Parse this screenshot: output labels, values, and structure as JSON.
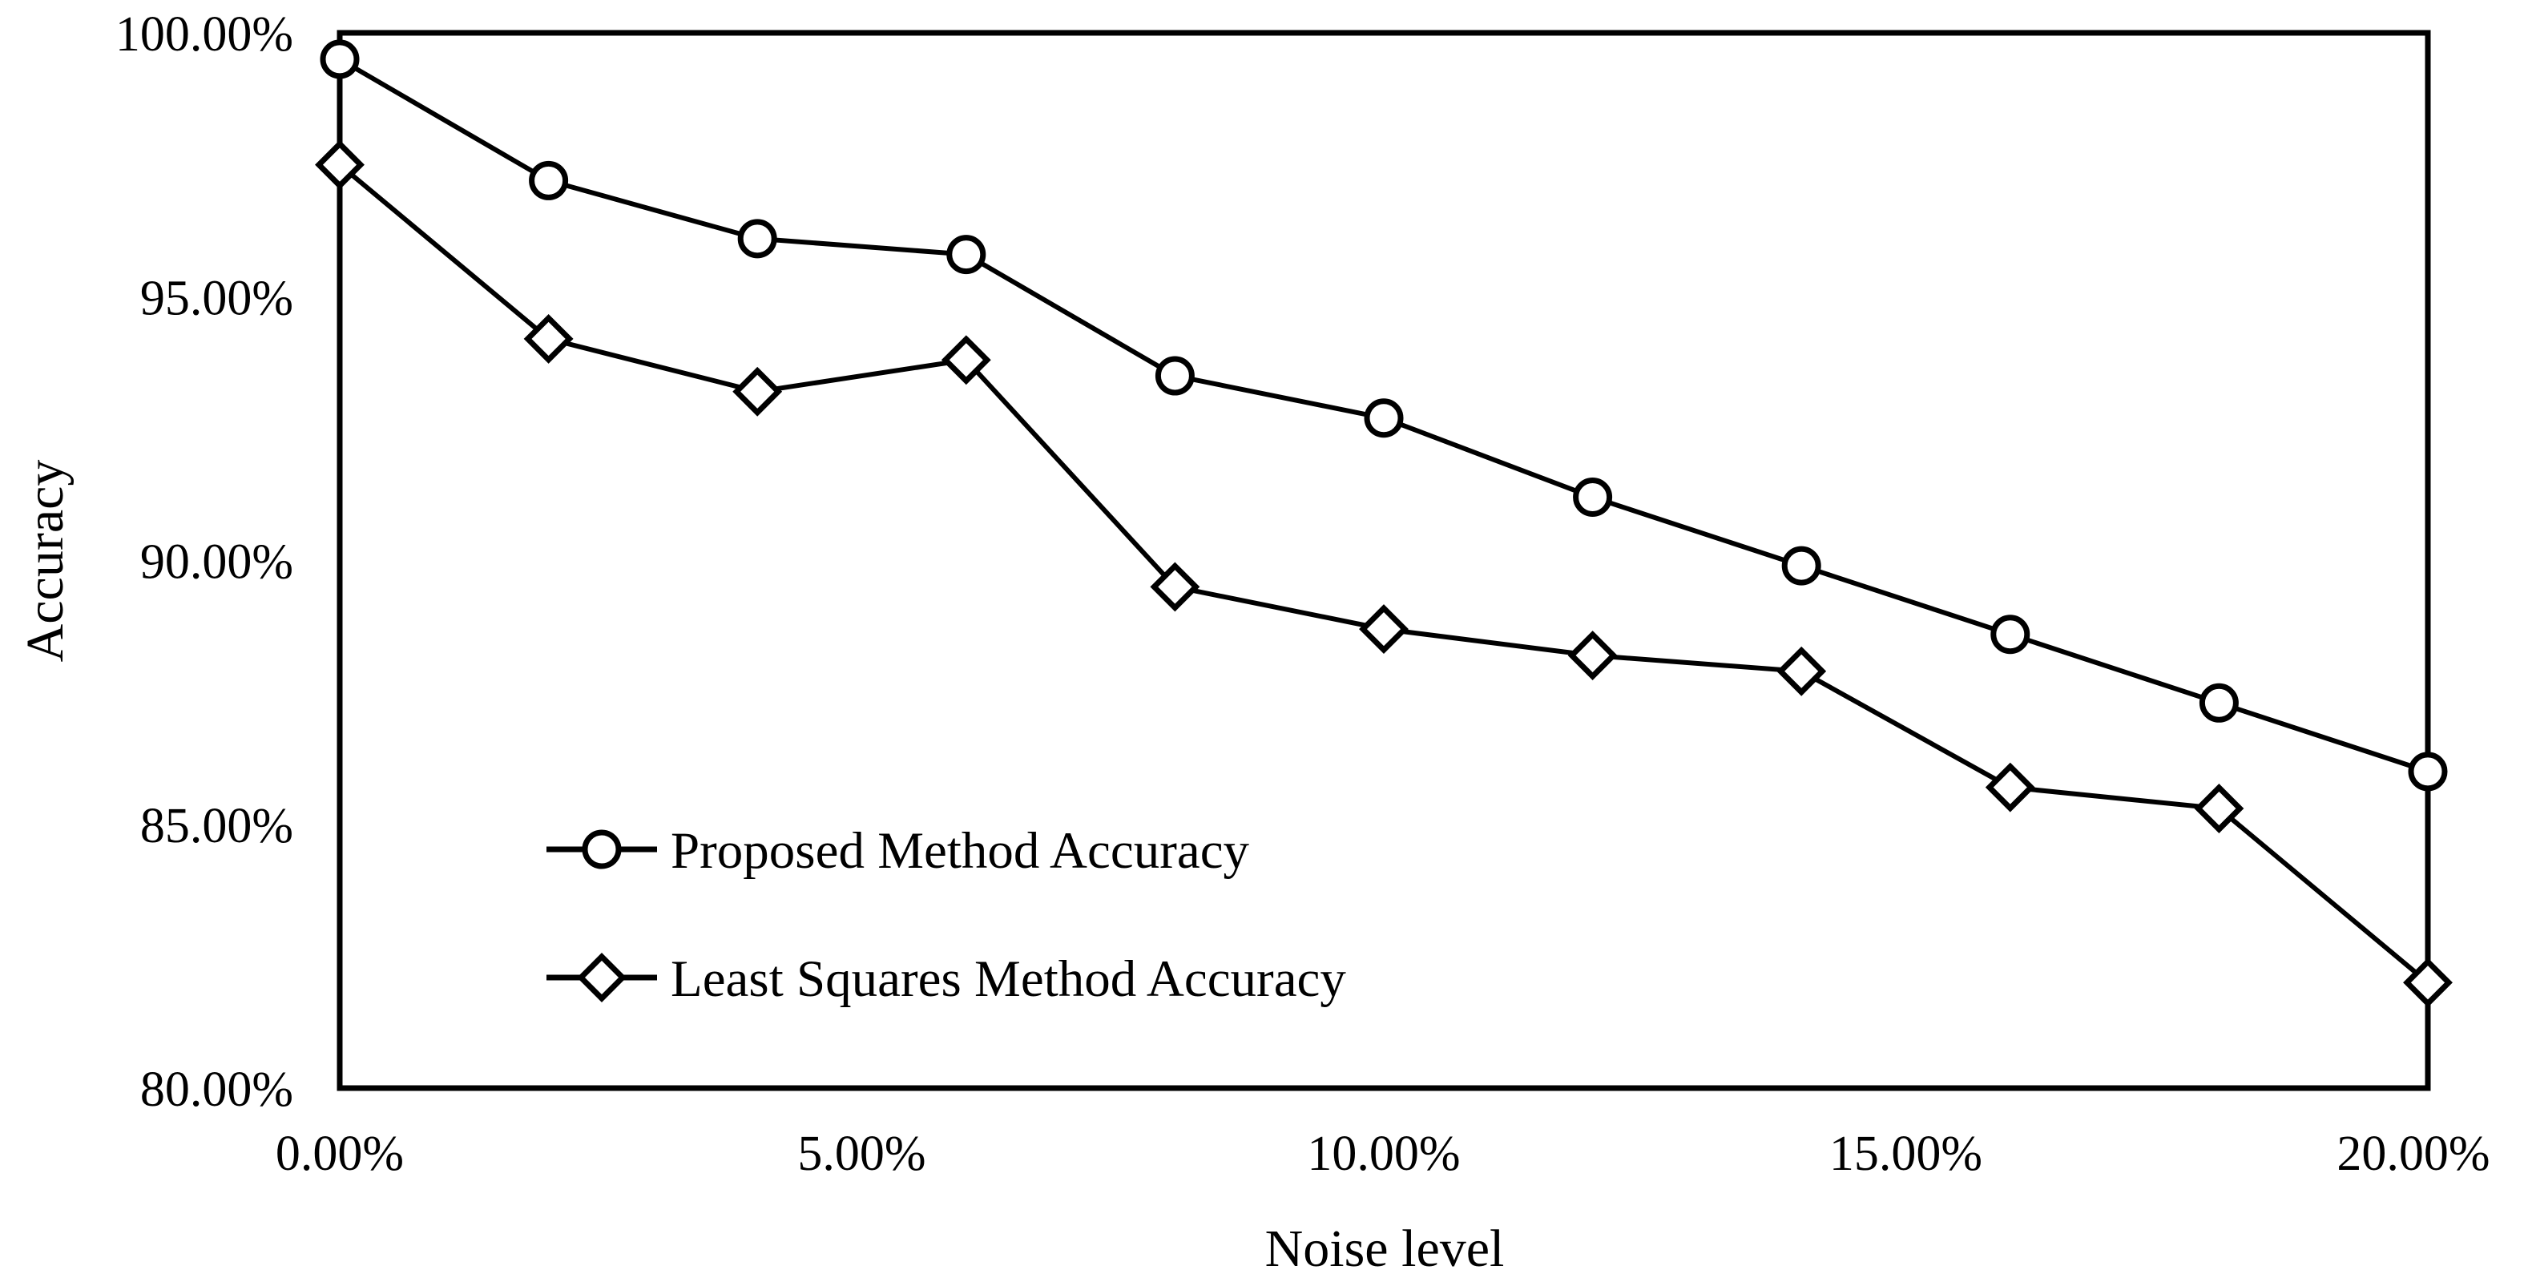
{
  "figure": {
    "background": "#ffffff",
    "line_color": "#000000"
  },
  "chart_data": {
    "type": "line",
    "title": "",
    "xlabel": "Noise level",
    "ylabel": "Accuracy",
    "xlim": [
      0,
      20
    ],
    "ylim": [
      80,
      100
    ],
    "grid": false,
    "legend_position": "inside lower-left",
    "x": [
      0,
      2,
      4,
      6,
      8,
      10,
      12,
      14,
      16,
      18,
      20
    ],
    "x_ticks": [
      0,
      5,
      10,
      15,
      20
    ],
    "x_tick_labels": [
      "0.00%",
      "5.00%",
      "10.00%",
      "15.00%",
      "20.00%"
    ],
    "y_ticks": [
      100,
      95,
      90,
      85,
      80
    ],
    "y_tick_labels": [
      "100.00%",
      "95.00%",
      "90.00%",
      "85.00%",
      "80.00%"
    ],
    "series": [
      {
        "name": "Proposed Method Accuracy",
        "marker": "circle",
        "color": "#000000",
        "values": [
          99.5,
          97.2,
          96.1,
          95.8,
          93.5,
          92.7,
          91.2,
          89.9,
          88.6,
          87.3,
          86.0
        ]
      },
      {
        "name": "Least Squares Method Accuracy",
        "marker": "diamond",
        "color": "#000000",
        "values": [
          97.5,
          94.2,
          93.2,
          93.8,
          89.5,
          88.7,
          88.2,
          87.9,
          85.7,
          85.3,
          82.0
        ]
      }
    ]
  }
}
